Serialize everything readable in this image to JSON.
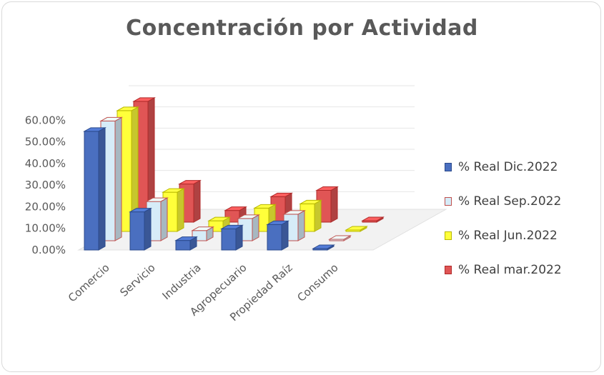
{
  "chart_data": {
    "type": "bar",
    "title": "Concentración por Actividad",
    "categories": [
      "Comercio",
      "Servicio",
      "Industria",
      "Agropecuario",
      "Propiedad Raíz",
      "Consumo"
    ],
    "y_ticks": [
      "0.00%",
      "10.00%",
      "20.00%",
      "30.00%",
      "40.00%",
      "50.00%",
      "60.00%"
    ],
    "ylim": [
      0,
      60
    ],
    "series": [
      {
        "name": "% Real Dic.2022",
        "color": "#4a6fc0",
        "stroke": "#2b4a8c",
        "values": [
          56.0,
          18.0,
          4.5,
          10.0,
          12.0,
          0.3
        ]
      },
      {
        "name": "% Real Sep.2022",
        "color": "#d6ecf8",
        "stroke": "#c0504d",
        "values": [
          56.5,
          18.5,
          4.8,
          10.5,
          12.5,
          0.3
        ]
      },
      {
        "name": "% Real Jun.2022",
        "color": "#ffff3a",
        "stroke": "#b8b800",
        "values": [
          57.0,
          18.5,
          5.0,
          11.0,
          13.0,
          0.3
        ]
      },
      {
        "name": "% Real mar.2022",
        "color": "#e05555",
        "stroke": "#b02a2a",
        "values": [
          57.0,
          18.0,
          5.5,
          12.0,
          15.0,
          0.3
        ]
      }
    ],
    "legend_position": "right",
    "grid": true
  }
}
